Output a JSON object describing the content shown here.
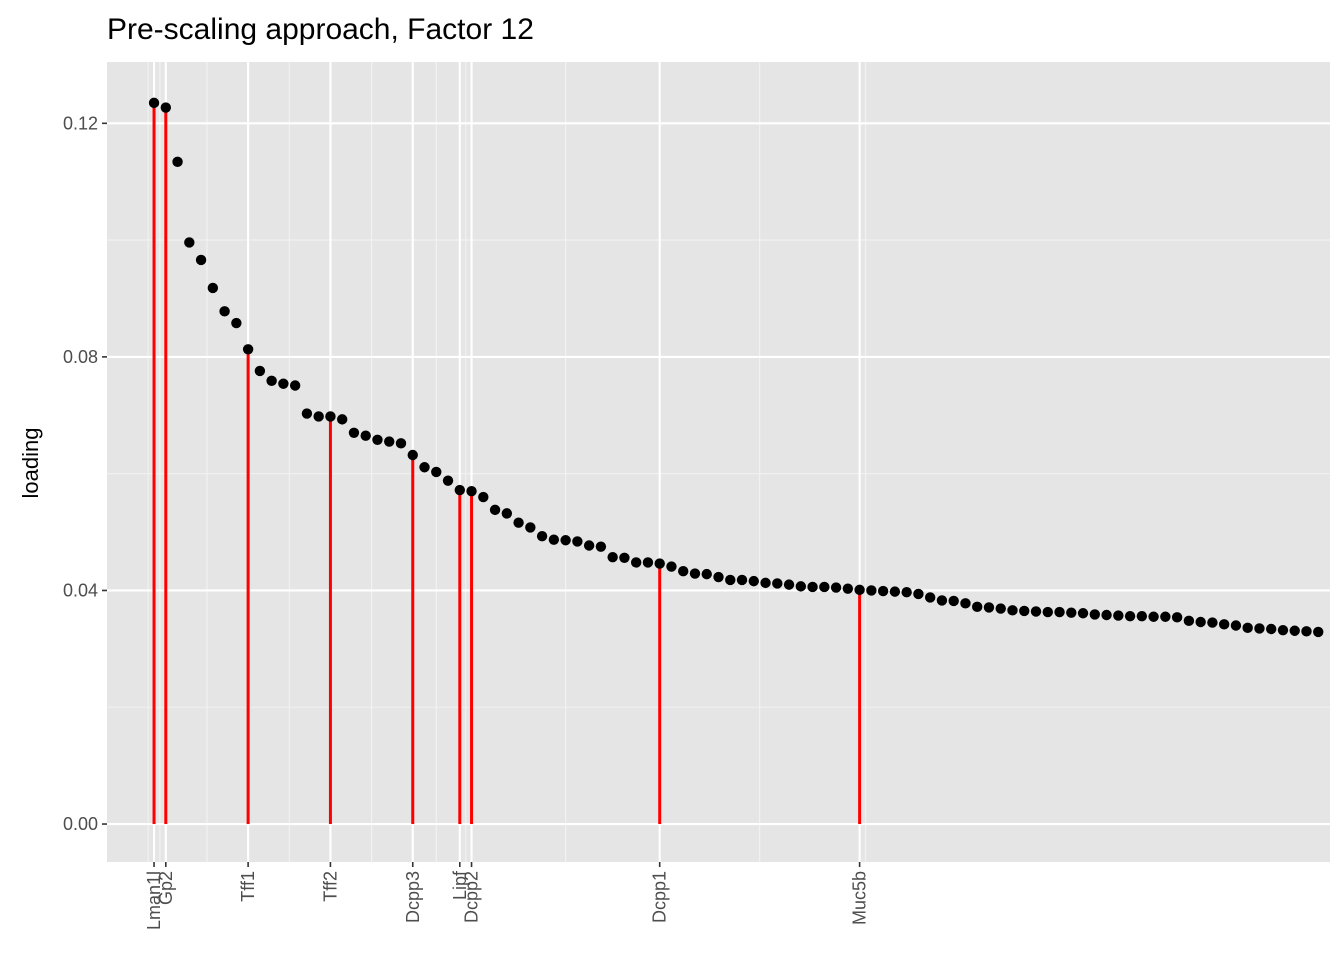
{
  "chart_data": {
    "type": "scatter",
    "title": "Pre-scaling approach, Factor 12",
    "xlabel": "",
    "ylabel": "loading",
    "ylim": [
      -0.0065,
      0.1305
    ],
    "xlim": [
      -4.0,
      100.0
    ],
    "y_ticks": [
      0.0,
      0.04,
      0.08,
      0.12
    ],
    "y_tick_labels": [
      "0.00",
      "0.04",
      "0.08",
      "0.12"
    ],
    "grid": true,
    "series": [
      {
        "values": [
          0.1235,
          0.1227,
          0.1134,
          0.0996,
          0.0966,
          0.0918,
          0.0878,
          0.0858,
          0.0813,
          0.0776,
          0.0759,
          0.0754,
          0.0751,
          0.0703,
          0.0698,
          0.0698,
          0.0693,
          0.067,
          0.0665,
          0.0658,
          0.0655,
          0.0652,
          0.0632,
          0.0611,
          0.0603,
          0.0588,
          0.0572,
          0.057,
          0.056,
          0.0538,
          0.0532,
          0.0516,
          0.0508,
          0.0493,
          0.0487,
          0.0486,
          0.0484,
          0.0477,
          0.0475,
          0.0457,
          0.0456,
          0.0448,
          0.0448,
          0.0446,
          0.0441,
          0.0433,
          0.0429,
          0.0428,
          0.0423,
          0.0418,
          0.0418,
          0.0416,
          0.0413,
          0.0412,
          0.041,
          0.0407,
          0.0406,
          0.0406,
          0.0405,
          0.0403,
          0.0401,
          0.04,
          0.0399,
          0.0398,
          0.0397,
          0.0394,
          0.0388,
          0.0383,
          0.0382,
          0.0378,
          0.0372,
          0.0371,
          0.0369,
          0.0366,
          0.0365,
          0.0364,
          0.0363,
          0.0363,
          0.0362,
          0.0361,
          0.0359,
          0.0358,
          0.0357,
          0.0356,
          0.0356,
          0.0355,
          0.0355,
          0.0354,
          0.0348,
          0.0346,
          0.0345,
          0.0342,
          0.034,
          0.0336,
          0.0335,
          0.0334,
          0.0332,
          0.0331,
          0.033,
          0.0329
        ]
      }
    ],
    "highlighted": [
      {
        "label": "Lman1l",
        "index": 0
      },
      {
        "label": "Gp2",
        "index": 1
      },
      {
        "label": "Tff1",
        "index": 8
      },
      {
        "label": "Tff2",
        "index": 15
      },
      {
        "label": "Dcpp3",
        "index": 22
      },
      {
        "label": "Lipf",
        "index": 26
      },
      {
        "label": "Dcpp2",
        "index": 27
      },
      {
        "label": "Dcpp1",
        "index": 43
      },
      {
        "label": "Muc5b",
        "index": 60
      }
    ],
    "colors": {
      "panel_background": "#e5e5e5",
      "grid_major": "#ffffff",
      "grid_minor": "#f2f2f2",
      "points": "#000000",
      "segments": "#ff0000",
      "tick_text": "#4d4d4d"
    }
  }
}
